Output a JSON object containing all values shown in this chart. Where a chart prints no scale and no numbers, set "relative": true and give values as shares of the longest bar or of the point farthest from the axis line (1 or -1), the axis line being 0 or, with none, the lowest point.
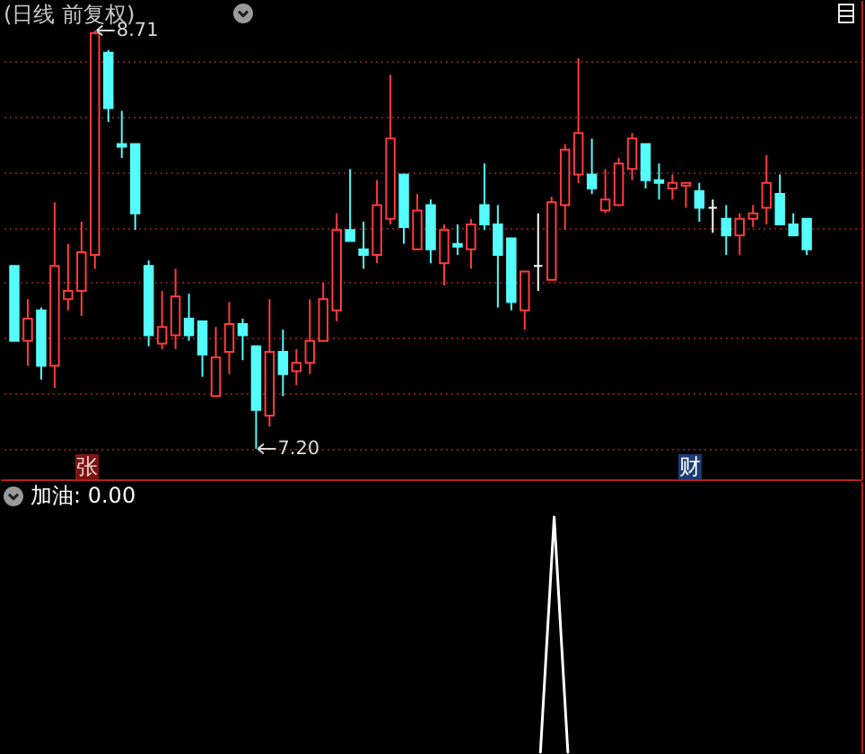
{
  "chart_data": [
    {
      "type": "candlestick",
      "title": "(日线 前复权)",
      "categories": [
        null,
        null,
        null,
        null,
        null,
        null,
        null,
        null,
        null,
        null,
        null,
        null,
        null,
        null,
        null,
        null,
        null,
        null,
        null,
        null,
        null,
        null,
        null,
        null,
        null,
        null,
        null,
        null,
        null,
        null,
        null,
        null,
        null,
        null,
        null,
        null,
        null,
        null,
        null,
        null,
        null,
        null,
        null,
        null,
        null,
        null,
        null,
        null,
        null,
        null,
        null,
        null,
        null,
        null,
        null,
        null,
        null,
        null,
        null,
        null
      ],
      "ohlc": [
        [
          7.86,
          7.86,
          7.59,
          7.59
        ],
        [
          7.59,
          7.74,
          7.5,
          7.67
        ],
        [
          7.7,
          7.71,
          7.45,
          7.5
        ],
        [
          7.5,
          8.09,
          7.42,
          7.86
        ],
        [
          7.74,
          7.94,
          7.7,
          7.77
        ],
        [
          7.77,
          8.02,
          7.68,
          7.91
        ],
        [
          7.9,
          8.71,
          7.85,
          8.7
        ],
        [
          8.63,
          8.64,
          8.38,
          8.43
        ],
        [
          8.3,
          8.42,
          8.25,
          8.29
        ],
        [
          8.3,
          8.3,
          7.99,
          8.05
        ],
        [
          7.86,
          7.88,
          7.57,
          7.61
        ],
        [
          7.58,
          7.77,
          7.56,
          7.64
        ],
        [
          7.61,
          7.85,
          7.56,
          7.75
        ],
        [
          7.67,
          7.76,
          7.59,
          7.61
        ],
        [
          7.66,
          7.66,
          7.46,
          7.54
        ],
        [
          7.39,
          7.64,
          7.39,
          7.53
        ],
        [
          7.55,
          7.73,
          7.47,
          7.65
        ],
        [
          7.65,
          7.67,
          7.52,
          7.61
        ],
        [
          7.57,
          7.57,
          7.2,
          7.34
        ],
        [
          7.32,
          7.74,
          7.28,
          7.55
        ],
        [
          7.55,
          7.63,
          7.39,
          7.47
        ],
        [
          7.48,
          7.56,
          7.43,
          7.51
        ],
        [
          7.51,
          7.74,
          7.47,
          7.59
        ],
        [
          7.59,
          7.8,
          7.59,
          7.74
        ],
        [
          7.7,
          8.05,
          7.66,
          7.99
        ],
        [
          7.99,
          8.21,
          7.95,
          7.95
        ],
        [
          7.92,
          8.02,
          7.85,
          7.9
        ],
        [
          7.9,
          8.17,
          7.87,
          8.08
        ],
        [
          8.03,
          8.55,
          8.01,
          8.32
        ],
        [
          8.19,
          8.19,
          7.94,
          8.0
        ],
        [
          7.92,
          8.12,
          7.92,
          8.06
        ],
        [
          8.08,
          8.1,
          7.87,
          7.92
        ],
        [
          7.87,
          8.01,
          7.79,
          7.99
        ],
        [
          7.94,
          8.01,
          7.9,
          7.93
        ],
        [
          7.92,
          8.03,
          7.85,
          8.01
        ],
        [
          8.08,
          8.23,
          7.99,
          8.01
        ],
        [
          8.01,
          8.08,
          7.71,
          7.9
        ],
        [
          7.96,
          7.96,
          7.7,
          7.73
        ],
        [
          7.7,
          7.84,
          7.63,
          7.84
        ],
        [
          7.86,
          8.05,
          7.77,
          7.86
        ],
        [
          7.81,
          8.11,
          7.81,
          8.09
        ],
        [
          8.08,
          8.3,
          7.99,
          8.28
        ],
        [
          8.19,
          8.61,
          8.16,
          8.34
        ],
        [
          8.19,
          8.32,
          8.12,
          8.14
        ],
        [
          8.06,
          8.21,
          8.05,
          8.1
        ],
        [
          8.08,
          8.25,
          8.08,
          8.23
        ],
        [
          8.21,
          8.34,
          8.17,
          8.32
        ],
        [
          8.3,
          8.3,
          8.14,
          8.17
        ],
        [
          8.17,
          8.23,
          8.1,
          8.16
        ],
        [
          8.14,
          8.19,
          8.1,
          8.16
        ],
        [
          8.15,
          8.16,
          8.07,
          8.16
        ],
        [
          8.13,
          8.16,
          8.02,
          8.07
        ],
        [
          8.07,
          8.1,
          7.98,
          8.07
        ],
        [
          8.03,
          8.08,
          7.9,
          7.97
        ],
        [
          7.97,
          8.05,
          7.9,
          8.03
        ],
        [
          8.03,
          8.08,
          8.0,
          8.05
        ],
        [
          8.07,
          8.26,
          8.01,
          8.16
        ],
        [
          8.12,
          8.19,
          8.01,
          8.01
        ],
        [
          8.01,
          8.05,
          7.97,
          7.97
        ],
        [
          8.03,
          8.03,
          7.9,
          7.92
        ]
      ],
      "colors": [
        "#54fcfc",
        "#ff3c3c",
        "#54fcfc",
        "#ff3c3c",
        "#ff3c3c",
        "#ff3c3c",
        "#ff3c3c",
        "#54fcfc",
        "#54fcfc",
        "#54fcfc",
        "#54fcfc",
        "#ff3c3c",
        "#ff3c3c",
        "#54fcfc",
        "#54fcfc",
        "#ff3c3c",
        "#ff3c3c",
        "#54fcfc",
        "#54fcfc",
        "#ff3c3c",
        "#54fcfc",
        "#ff3c3c",
        "#ff3c3c",
        "#ff3c3c",
        "#ff3c3c",
        "#54fcfc",
        "#54fcfc",
        "#ff3c3c",
        "#ff3c3c",
        "#54fcfc",
        "#ff3c3c",
        "#54fcfc",
        "#ff3c3c",
        "#54fcfc",
        "#ff3c3c",
        "#54fcfc",
        "#54fcfc",
        "#54fcfc",
        "#ff3c3c",
        "#ffffff",
        "#ff3c3c",
        "#ff3c3c",
        "#ff3c3c",
        "#54fcfc",
        "#ff3c3c",
        "#ff3c3c",
        "#ff3c3c",
        "#54fcfc",
        "#54fcfc",
        "#ff3c3c",
        "#ff3c3c",
        "#54fcfc",
        "#ffffff",
        "#54fcfc",
        "#ff3c3c",
        "#ff3c3c",
        "#ff3c3c",
        "#54fcfc",
        "#54fcfc",
        "#54fcfc"
      ],
      "yticks": [
        {
          "value": 7.2,
          "label": null
        },
        {
          "value": 7.4,
          "label": null
        },
        {
          "value": 7.6,
          "label": null
        },
        {
          "value": 7.8,
          "label": null
        },
        {
          "value": 8.0,
          "label": null
        },
        {
          "value": 8.2,
          "label": null
        },
        {
          "value": 8.4,
          "label": null
        },
        {
          "value": 8.6,
          "label": null
        }
      ],
      "grid": "y",
      "annotations": [
        "8.71",
        "7.20",
        "张",
        "财"
      ]
    },
    {
      "type": "line",
      "title": "加油: 0.00",
      "relative": true,
      "categories": [
        null,
        null,
        null,
        null,
        null,
        null,
        null,
        null,
        null,
        null,
        null,
        null,
        null,
        null,
        null,
        null,
        null,
        null,
        null,
        null,
        null,
        null,
        null,
        null,
        null,
        null,
        null,
        null,
        null,
        null,
        null,
        null,
        null,
        null,
        null,
        null,
        null,
        null,
        null,
        null,
        null,
        null,
        null,
        null,
        null,
        null,
        null,
        null,
        null,
        null,
        null,
        null,
        null,
        null,
        null,
        null,
        null,
        null,
        null,
        null
      ],
      "series": [
        {
          "color": "#ffffff",
          "values": [
            null,
            null,
            null,
            null,
            null,
            null,
            null,
            null,
            null,
            null,
            null,
            null,
            null,
            null,
            null,
            null,
            null,
            null,
            null,
            null,
            null,
            null,
            null,
            null,
            null,
            null,
            null,
            null,
            null,
            null,
            null,
            null,
            null,
            null,
            null,
            null,
            null,
            null,
            null,
            0,
            1,
            0,
            null,
            null,
            null,
            null,
            null,
            null,
            null,
            null,
            null,
            null,
            null,
            null,
            null,
            null,
            null,
            null,
            null,
            null
          ]
        }
      ]
    }
  ]
}
